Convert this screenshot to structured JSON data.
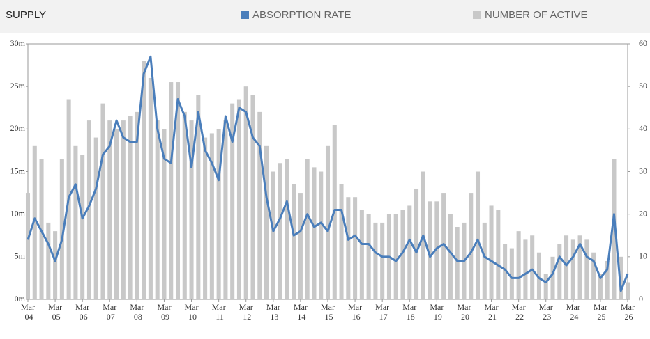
{
  "chart_data": {
    "type": "bar",
    "title": "SUPPLY",
    "categories": [
      "Mar 04",
      null,
      null,
      null,
      "Mar 05",
      null,
      null,
      null,
      "Mar 06",
      null,
      null,
      null,
      "Mar 07",
      null,
      null,
      null,
      "Mar 08",
      null,
      null,
      null,
      "Mar 09",
      null,
      null,
      null,
      "Mar 10",
      null,
      null,
      null,
      "Mar 11",
      null,
      null,
      null,
      "Mar 12",
      null,
      null,
      null,
      "Mar 13",
      null,
      null,
      null,
      "Mar 14",
      null,
      null,
      null,
      "Mar 15",
      null,
      null,
      null,
      "Mar 16",
      null,
      null,
      null,
      "Mar 17",
      null,
      null,
      null,
      "Mar 18",
      null,
      null,
      null,
      "Mar 19",
      null,
      null,
      null,
      "Mar 20",
      null,
      null,
      null,
      "Mar 21",
      null,
      null,
      null,
      "Mar 22",
      null,
      null,
      null,
      "Mar 23",
      null,
      null,
      null,
      "Mar 24",
      null,
      null,
      null,
      "Mar 25",
      null,
      null,
      null,
      "Mar 26"
    ],
    "series": [
      {
        "name": "ABSORPTION RATE",
        "type": "line",
        "axis": "y2",
        "color": "#4a7ebb",
        "values": [
          14,
          19,
          16,
          13,
          9,
          14,
          24,
          27,
          19,
          22,
          26,
          34,
          36,
          42,
          38,
          37,
          37,
          53,
          57,
          40,
          33,
          32,
          47,
          43,
          31,
          44,
          35,
          32,
          28,
          43,
          37,
          45,
          44,
          38,
          36,
          24,
          16,
          19,
          23,
          15,
          16,
          20,
          17,
          18,
          16,
          21,
          21,
          14,
          15,
          13,
          13,
          11,
          10,
          10,
          9,
          11,
          14,
          11,
          15,
          10,
          12,
          13,
          11,
          9,
          9,
          11,
          14,
          10,
          9,
          8,
          7,
          5,
          5,
          6,
          7,
          5,
          4,
          6,
          10,
          8,
          10,
          13,
          10,
          9,
          5,
          7,
          20,
          2,
          6
        ]
      },
      {
        "name": "NUMBER OF ACTIVE",
        "type": "bar",
        "axis": "y",
        "color": "#c8c8c8",
        "values": [
          12.5,
          18,
          16.5,
          9,
          8,
          16.5,
          23.5,
          18,
          17,
          21,
          19,
          23,
          21,
          20,
          21,
          21.5,
          22,
          28,
          26,
          21,
          20,
          25.5,
          25.5,
          22,
          21,
          24,
          19,
          19.5,
          20,
          21,
          23,
          23.5,
          25,
          24,
          22,
          18,
          15,
          16,
          16.5,
          13.5,
          12.5,
          16.5,
          15.5,
          15,
          18,
          20.5,
          13.5,
          12,
          12,
          10.5,
          10,
          9,
          9,
          10,
          10,
          10.5,
          11,
          13,
          15,
          11.5,
          11.5,
          12.5,
          10,
          8.5,
          9,
          12.5,
          15,
          9,
          11,
          10.5,
          6.5,
          6,
          8,
          7,
          7.5,
          5.5,
          3,
          5,
          6.5,
          7.5,
          7,
          7.5,
          7,
          5.5,
          3,
          4.5,
          16.5,
          5,
          2
        ]
      }
    ],
    "ylim": [
      0,
      30
    ],
    "yticks": [
      {
        "value": 0,
        "label": "0m"
      },
      {
        "value": 5,
        "label": "5m"
      },
      {
        "value": 10,
        "label": "10m"
      },
      {
        "value": 15,
        "label": "15m"
      },
      {
        "value": 20,
        "label": "20m"
      },
      {
        "value": 25,
        "label": "25m"
      },
      {
        "value": 30,
        "label": "30m"
      }
    ],
    "y2lim": [
      0,
      60
    ],
    "y2ticks": [
      0,
      10,
      20,
      30,
      40,
      50,
      60
    ],
    "grid": false
  }
}
